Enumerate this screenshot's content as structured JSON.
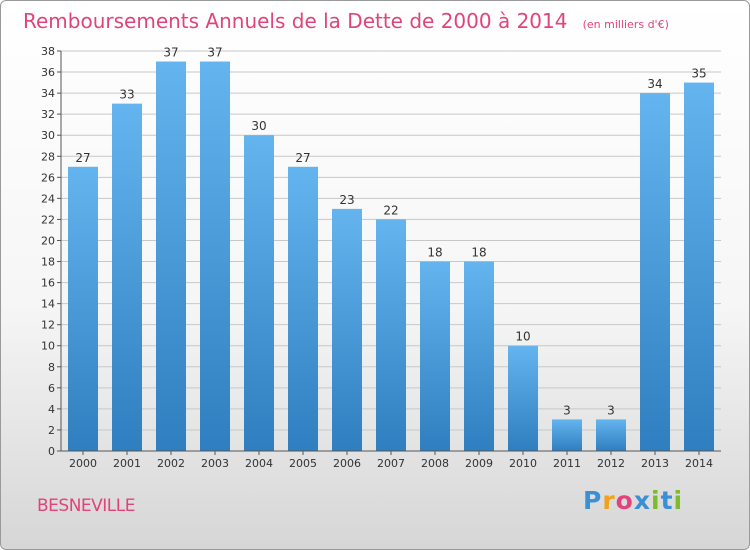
{
  "title": "Remboursements Annuels de la Dette de 2000 à 2014",
  "subtitle": "(en milliers d'€)",
  "city": "BESNEVILLE",
  "logo": {
    "text": "Proxiti",
    "letters": [
      "P",
      "r",
      "o",
      "x",
      "i",
      "t",
      "i"
    ],
    "colors": [
      "#3b8fd4",
      "#f2a11a",
      "#e0447a",
      "#3b8fd4",
      "#7dbb2a",
      "#3b8fd4",
      "#7dbb2a"
    ]
  },
  "colors": {
    "bar_top": "#64b4ef",
    "bar_bottom": "#2f7fc0",
    "title": "#e0447a",
    "grid": "#c8c8c8"
  },
  "chart_data": {
    "type": "bar",
    "categories": [
      "2000",
      "2001",
      "2002",
      "2003",
      "2004",
      "2005",
      "2006",
      "2007",
      "2008",
      "2009",
      "2010",
      "2011",
      "2012",
      "2013",
      "2014"
    ],
    "values": [
      27,
      33,
      37,
      37,
      30,
      27,
      23,
      22,
      18,
      18,
      10,
      3,
      3,
      34,
      35
    ],
    "ylim": [
      0,
      38
    ],
    "yticks": [
      0,
      2,
      4,
      6,
      8,
      10,
      12,
      14,
      16,
      18,
      20,
      22,
      24,
      26,
      28,
      30,
      32,
      34,
      36,
      38
    ],
    "grid": true,
    "data_labels": true
  }
}
